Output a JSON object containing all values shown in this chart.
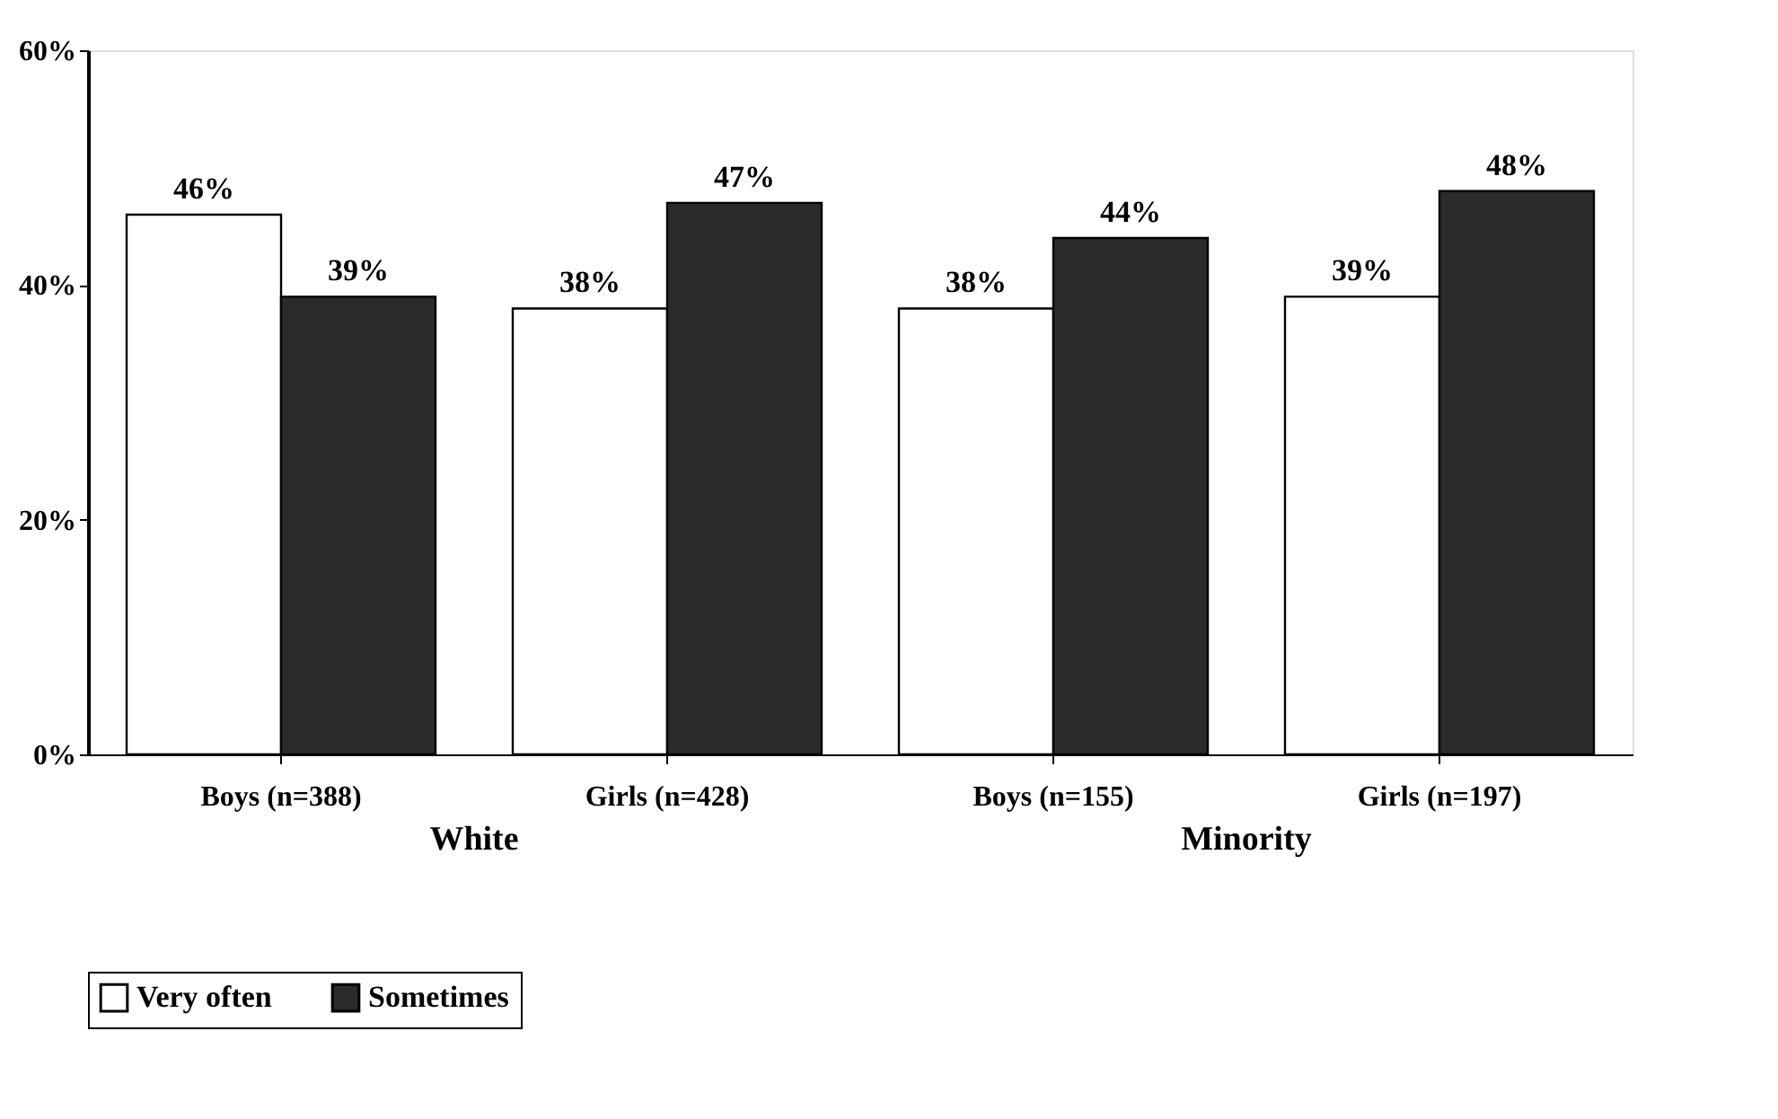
{
  "chart_data": {
    "type": "bar",
    "categories": [
      "Boys (n=388)",
      "Girls (n=428)",
      "Boys (n=155)",
      "Girls (n=197)"
    ],
    "series": [
      {
        "name": "Very often",
        "color": "#ffffff",
        "values": [
          46,
          38,
          38,
          39
        ],
        "value_labels": [
          "46%",
          "38%",
          "38%",
          "39%"
        ]
      },
      {
        "name": "Sometimes",
        "color": "#2b2b2b",
        "values": [
          39,
          47,
          44,
          48
        ],
        "value_labels": [
          "39%",
          "47%",
          "44%",
          "48%"
        ]
      }
    ],
    "ylim": [
      0,
      60
    ],
    "yticks": [
      {
        "value": 0,
        "label": "0%"
      },
      {
        "value": 20,
        "label": "20%"
      },
      {
        "value": 40,
        "label": "40%"
      },
      {
        "value": 60,
        "label": "60%"
      }
    ],
    "annotations": [
      "White",
      "Minority"
    ],
    "legend": "bottom",
    "grid": false
  }
}
